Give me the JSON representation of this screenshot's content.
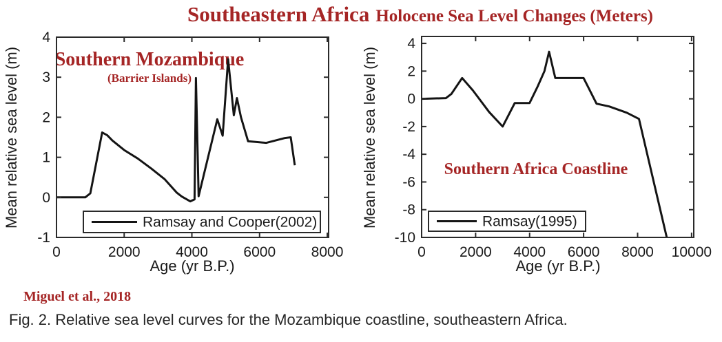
{
  "page": {
    "background": "#ffffff",
    "title": {
      "emphasis": "Southeastern Africa",
      "rest": "Holocene Sea Level Changes (Meters)"
    },
    "source_citation": "Miguel et al., 2018",
    "caption": "Fig. 2. Relative sea level curves for the Mozambique coastline, southeastern Africa.",
    "colors": {
      "accent_red": "#a52525",
      "curve_black": "#141414",
      "axis_dark": "#2a2a2a",
      "text_dark": "#1a1a1a"
    }
  },
  "chart_data": [
    {
      "id": "mozambique",
      "type": "line",
      "region_label": "Southern Mozambique",
      "region_sublabel": "(Barrier Islands)",
      "xlabel": "Age (yr B.P.)",
      "ylabel": "Mean relative sea level (m)",
      "xlim": [
        0,
        8040
      ],
      "ylim": [
        -1,
        4
      ],
      "xticks": [
        0,
        2000,
        4000,
        6000,
        8000
      ],
      "yticks": [
        -1,
        0,
        1,
        2,
        3,
        4
      ],
      "grid": false,
      "legend": {
        "position": "bottom-center",
        "entries": [
          "Ramsay and Cooper(2002)"
        ]
      },
      "series": [
        {
          "name": "Ramsay and Cooper(2002)",
          "color": "#141414",
          "points": [
            [
              0,
              0
            ],
            [
              850,
              0
            ],
            [
              1000,
              0.1
            ],
            [
              1350,
              1.62
            ],
            [
              1500,
              1.55
            ],
            [
              1650,
              1.42
            ],
            [
              2000,
              1.18
            ],
            [
              2400,
              0.97
            ],
            [
              2800,
              0.72
            ],
            [
              3200,
              0.45
            ],
            [
              3550,
              0.12
            ],
            [
              3700,
              0.02
            ],
            [
              3950,
              -0.1
            ],
            [
              4080,
              -0.05
            ],
            [
              4120,
              2.98
            ],
            [
              4200,
              0.03
            ],
            [
              4750,
              1.95
            ],
            [
              4910,
              1.54
            ],
            [
              5070,
              3.45
            ],
            [
              5240,
              2.05
            ],
            [
              5330,
              2.48
            ],
            [
              5450,
              2.0
            ],
            [
              5660,
              1.4
            ],
            [
              6200,
              1.36
            ],
            [
              6740,
              1.48
            ],
            [
              6920,
              1.5
            ],
            [
              7040,
              0.8
            ]
          ]
        }
      ]
    },
    {
      "id": "south-africa",
      "type": "line",
      "region_label": "Southern Africa Coastline",
      "region_sublabel": "",
      "xlabel": "Age (yr B.P.)",
      "ylabel": "Mean relative sea level (m)",
      "xlim": [
        0,
        10080
      ],
      "ylim": [
        -10,
        4.5
      ],
      "xticks": [
        0,
        2000,
        4000,
        6000,
        8000,
        10000
      ],
      "yticks": [
        -10,
        -8,
        -6,
        -4,
        -2,
        0,
        2,
        4
      ],
      "grid": false,
      "legend": {
        "position": "bottom-left",
        "entries": [
          "Ramsay(1995)"
        ]
      },
      "series": [
        {
          "name": "Ramsay(1995)",
          "color": "#141414",
          "points": [
            [
              0,
              0
            ],
            [
              900,
              0.05
            ],
            [
              1100,
              0.35
            ],
            [
              1500,
              1.5
            ],
            [
              1900,
              0.6
            ],
            [
              2500,
              -0.95
            ],
            [
              3000,
              -2.0
            ],
            [
              3450,
              -0.3
            ],
            [
              4000,
              -0.3
            ],
            [
              4300,
              0.9
            ],
            [
              4550,
              2.0
            ],
            [
              4720,
              3.4
            ],
            [
              4950,
              1.5
            ],
            [
              6000,
              1.5
            ],
            [
              6480,
              -0.35
            ],
            [
              6950,
              -0.55
            ],
            [
              7600,
              -1.0
            ],
            [
              8050,
              -1.45
            ],
            [
              9080,
              -10
            ]
          ]
        }
      ]
    }
  ]
}
